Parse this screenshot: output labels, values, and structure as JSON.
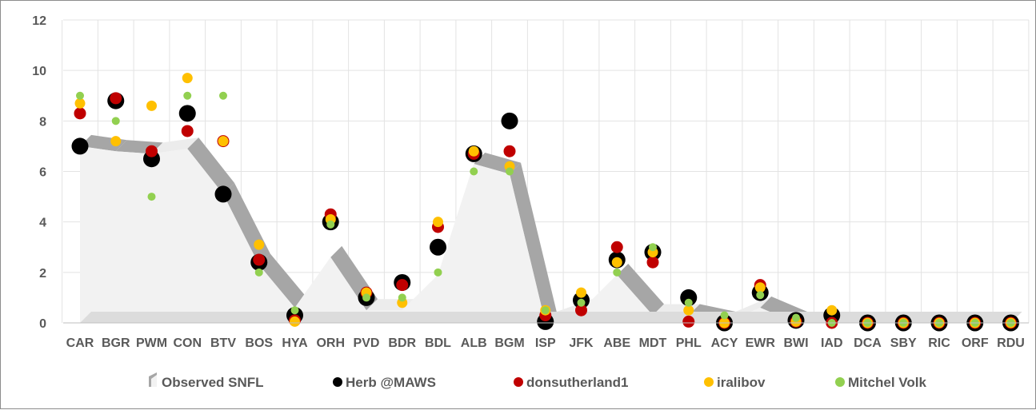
{
  "chart_data": {
    "type": "scatter",
    "categories": [
      "CAR",
      "BGR",
      "PWM",
      "CON",
      "BTV",
      "BOS",
      "HYA",
      "ORH",
      "PVD",
      "BDR",
      "BDL",
      "ALB",
      "BGM",
      "ISP",
      "JFK",
      "ABE",
      "MDT",
      "PHL",
      "ACY",
      "EWR",
      "BWI",
      "IAD",
      "DCA",
      "SBY",
      "RIC",
      "ORF",
      "RDU"
    ],
    "ylim": [
      0,
      12
    ],
    "yticks": [
      "0",
      "2",
      "4",
      "6",
      "8",
      "10",
      "12"
    ],
    "grid": true,
    "legend_position": "bottom",
    "series": [
      {
        "name": "Observed SNFL",
        "kind": "area",
        "color": "#f2f2f2",
        "values": [
          7.0,
          6.8,
          6.7,
          6.9,
          5.1,
          2.3,
          0.6,
          2.6,
          0.5,
          0.5,
          1.9,
          6.3,
          5.9,
          0.0,
          0.5,
          1.9,
          0.3,
          0.3,
          0.0,
          0.6,
          0.0,
          0.0,
          0.0,
          0.0,
          0.0,
          0.0,
          0.0
        ]
      },
      {
        "name": "Herb @MAWS",
        "kind": "marker",
        "color": "#000000",
        "values": [
          7.0,
          8.8,
          6.5,
          8.3,
          5.1,
          2.4,
          0.3,
          4.0,
          1.0,
          1.6,
          3.0,
          6.7,
          8.0,
          0.05,
          0.9,
          2.5,
          2.8,
          1.0,
          0.0,
          1.2,
          0.1,
          0.3,
          0.0,
          0.0,
          0.0,
          0.0,
          0.0
        ]
      },
      {
        "name": "donsutherland1",
        "kind": "marker",
        "color": "#c00000",
        "values": [
          8.3,
          8.9,
          6.8,
          7.6,
          7.2,
          2.5,
          0.1,
          4.3,
          1.2,
          1.5,
          3.8,
          6.7,
          6.8,
          0.3,
          0.5,
          3.0,
          2.4,
          0.05,
          0.0,
          1.5,
          0.05,
          0.0,
          0.0,
          0.0,
          0.0,
          0.0,
          0.0
        ]
      },
      {
        "name": "iralibov",
        "kind": "marker",
        "color": "#ffc000",
        "values": [
          8.7,
          7.2,
          8.6,
          9.7,
          7.2,
          3.1,
          0.05,
          4.1,
          1.2,
          0.8,
          4.0,
          6.8,
          6.2,
          0.5,
          1.2,
          2.4,
          2.8,
          0.5,
          0.0,
          1.4,
          0.05,
          0.5,
          0.0,
          0.0,
          0.0,
          0.0,
          0.0
        ]
      },
      {
        "name": "Mitchel Volk",
        "kind": "marker",
        "color": "#92d050",
        "values": [
          9.0,
          8.0,
          5.0,
          9.0,
          9.0,
          2.0,
          0.5,
          3.9,
          1.0,
          1.0,
          2.0,
          6.0,
          6.0,
          0.5,
          0.8,
          2.0,
          3.0,
          0.8,
          0.3,
          1.1,
          0.2,
          0.0,
          0.0,
          0.0,
          0.0,
          0.0,
          0.0
        ]
      }
    ]
  }
}
